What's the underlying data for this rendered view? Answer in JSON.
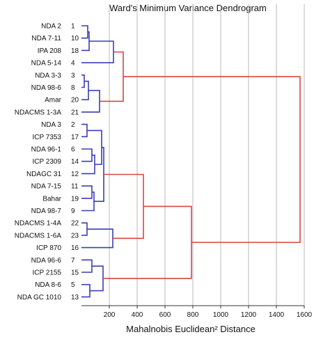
{
  "chart_data": {
    "type": "dendrogram",
    "title": "Ward's Minimum Variance Dendrogram",
    "xlabel": "Mahalnobis Euclidean² Distance",
    "xlim": [
      0,
      1600
    ],
    "xticks": [
      200,
      400,
      600,
      800,
      1000,
      1200,
      1400,
      1600
    ],
    "grid": true,
    "colors": {
      "lower_clusters": "#3a3fb0",
      "upper_merges": "#d8453f",
      "grid": "#b8b8b8"
    },
    "leaves": [
      {
        "name": "NDA 2",
        "id": "1"
      },
      {
        "name": "NDA 7-11",
        "id": "10"
      },
      {
        "name": "IPA 208",
        "id": "18"
      },
      {
        "name": "NDA 5-14",
        "id": "4"
      },
      {
        "name": "NDA 3-3",
        "id": "3"
      },
      {
        "name": "NDA 98-6",
        "id": "8"
      },
      {
        "name": "Amar",
        "id": "20"
      },
      {
        "name": "NDACMS 1-3A",
        "id": "21"
      },
      {
        "name": "NDA 3",
        "id": "2"
      },
      {
        "name": "ICP 7353",
        "id": "17"
      },
      {
        "name": "NDA 96-1",
        "id": "6"
      },
      {
        "name": "ICP 2309",
        "id": "14"
      },
      {
        "name": "NDAGC 31",
        "id": "12"
      },
      {
        "name": "NDA 7-15",
        "id": "11"
      },
      {
        "name": "Bahar",
        "id": "19"
      },
      {
        "name": "NDA 98-7",
        "id": "9"
      },
      {
        "name": "NDACMS 1-4A",
        "id": "22"
      },
      {
        "name": "NDACMS 1-6A",
        "id": "23"
      },
      {
        "name": "ICP 870",
        "id": "16"
      },
      {
        "name": "NDA 96-6",
        "id": "7"
      },
      {
        "name": "ICP 2155",
        "id": "15"
      },
      {
        "name": "NDA 8-6",
        "id": "5"
      },
      {
        "name": "NDA GC 1010",
        "id": "13"
      }
    ],
    "merges": [
      {
        "left": "L0",
        "right": "L1",
        "height": 45,
        "color": "blue"
      },
      {
        "left": "N0",
        "right": "L2",
        "height": 55,
        "color": "blue"
      },
      {
        "left": "N1",
        "right": "L3",
        "height": 230,
        "color": "blue"
      },
      {
        "left": "L4",
        "right": "L5",
        "height": 20,
        "color": "blue"
      },
      {
        "left": "N3",
        "right": "L6",
        "height": 50,
        "color": "blue"
      },
      {
        "left": "N4",
        "right": "L7",
        "height": 130,
        "color": "blue"
      },
      {
        "left": "N2",
        "right": "N5",
        "height": 300,
        "color": "red"
      },
      {
        "left": "L8",
        "right": "L9",
        "height": 40,
        "color": "blue"
      },
      {
        "left": "L10",
        "right": "L11",
        "height": 75,
        "color": "blue"
      },
      {
        "left": "N8",
        "right": "L12",
        "height": 95,
        "color": "blue"
      },
      {
        "left": "N7",
        "right": "N9",
        "height": 145,
        "color": "blue"
      },
      {
        "left": "L13",
        "right": "L14",
        "height": 75,
        "color": "blue"
      },
      {
        "left": "N11",
        "right": "L15",
        "height": 90,
        "color": "blue"
      },
      {
        "left": "N10",
        "right": "N12",
        "height": 160,
        "color": "blue"
      },
      {
        "left": "L16",
        "right": "L17",
        "height": 40,
        "color": "blue"
      },
      {
        "left": "N14",
        "right": "L18",
        "height": 225,
        "color": "blue"
      },
      {
        "left": "N13",
        "right": "N15",
        "height": 445,
        "color": "red"
      },
      {
        "left": "L19",
        "right": "L20",
        "height": 75,
        "color": "blue"
      },
      {
        "left": "L21",
        "right": "L22",
        "height": 60,
        "color": "blue"
      },
      {
        "left": "N17",
        "right": "N18",
        "height": 155,
        "color": "blue"
      },
      {
        "left": "N16",
        "right": "N19",
        "height": 790,
        "color": "red"
      },
      {
        "left": "N6",
        "right": "N20",
        "height": 1570,
        "color": "red"
      }
    ]
  }
}
